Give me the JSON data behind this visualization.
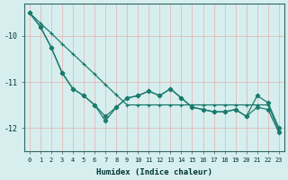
{
  "xlabel": "Humidex (Indice chaleur)",
  "xlim": [
    -0.5,
    23.5
  ],
  "ylim": [
    -12.5,
    -9.3
  ],
  "yticks": [
    -12,
    -11,
    -10
  ],
  "xticks": [
    0,
    1,
    2,
    3,
    4,
    5,
    6,
    7,
    8,
    9,
    10,
    11,
    12,
    13,
    14,
    15,
    16,
    17,
    18,
    19,
    20,
    21,
    22,
    23
  ],
  "bg_color": "#d6eeee",
  "line_color": "#1a7a6e",
  "grid_color": "#e8b0b0",
  "line_straight": [
    -9.5,
    -9.72,
    -9.94,
    -10.17,
    -10.39,
    -10.61,
    -10.83,
    -11.06,
    -11.28,
    -11.5,
    -11.5,
    -11.5,
    -11.5,
    -11.5,
    -11.5,
    -11.5,
    -11.5,
    -11.5,
    -11.5,
    -11.5,
    -11.5,
    -11.5,
    -11.5,
    -12.05
  ],
  "line_jagged1": [
    -9.5,
    -9.8,
    -10.25,
    -10.8,
    -11.15,
    -11.3,
    -11.5,
    -11.75,
    -11.55,
    -11.35,
    -11.3,
    -11.2,
    -11.3,
    -11.15,
    -11.35,
    -11.55,
    -11.6,
    -11.65,
    -11.65,
    -11.6,
    -11.75,
    -11.55,
    -11.6,
    -12.1
  ],
  "line_jagged2": [
    -9.5,
    -9.8,
    -10.25,
    -10.8,
    -11.15,
    -11.3,
    -11.5,
    -11.85,
    -11.55,
    -11.35,
    -11.3,
    -11.2,
    -11.3,
    -11.15,
    -11.35,
    -11.55,
    -11.6,
    -11.65,
    -11.65,
    -11.6,
    -11.75,
    -11.3,
    -11.45,
    -12.0
  ]
}
